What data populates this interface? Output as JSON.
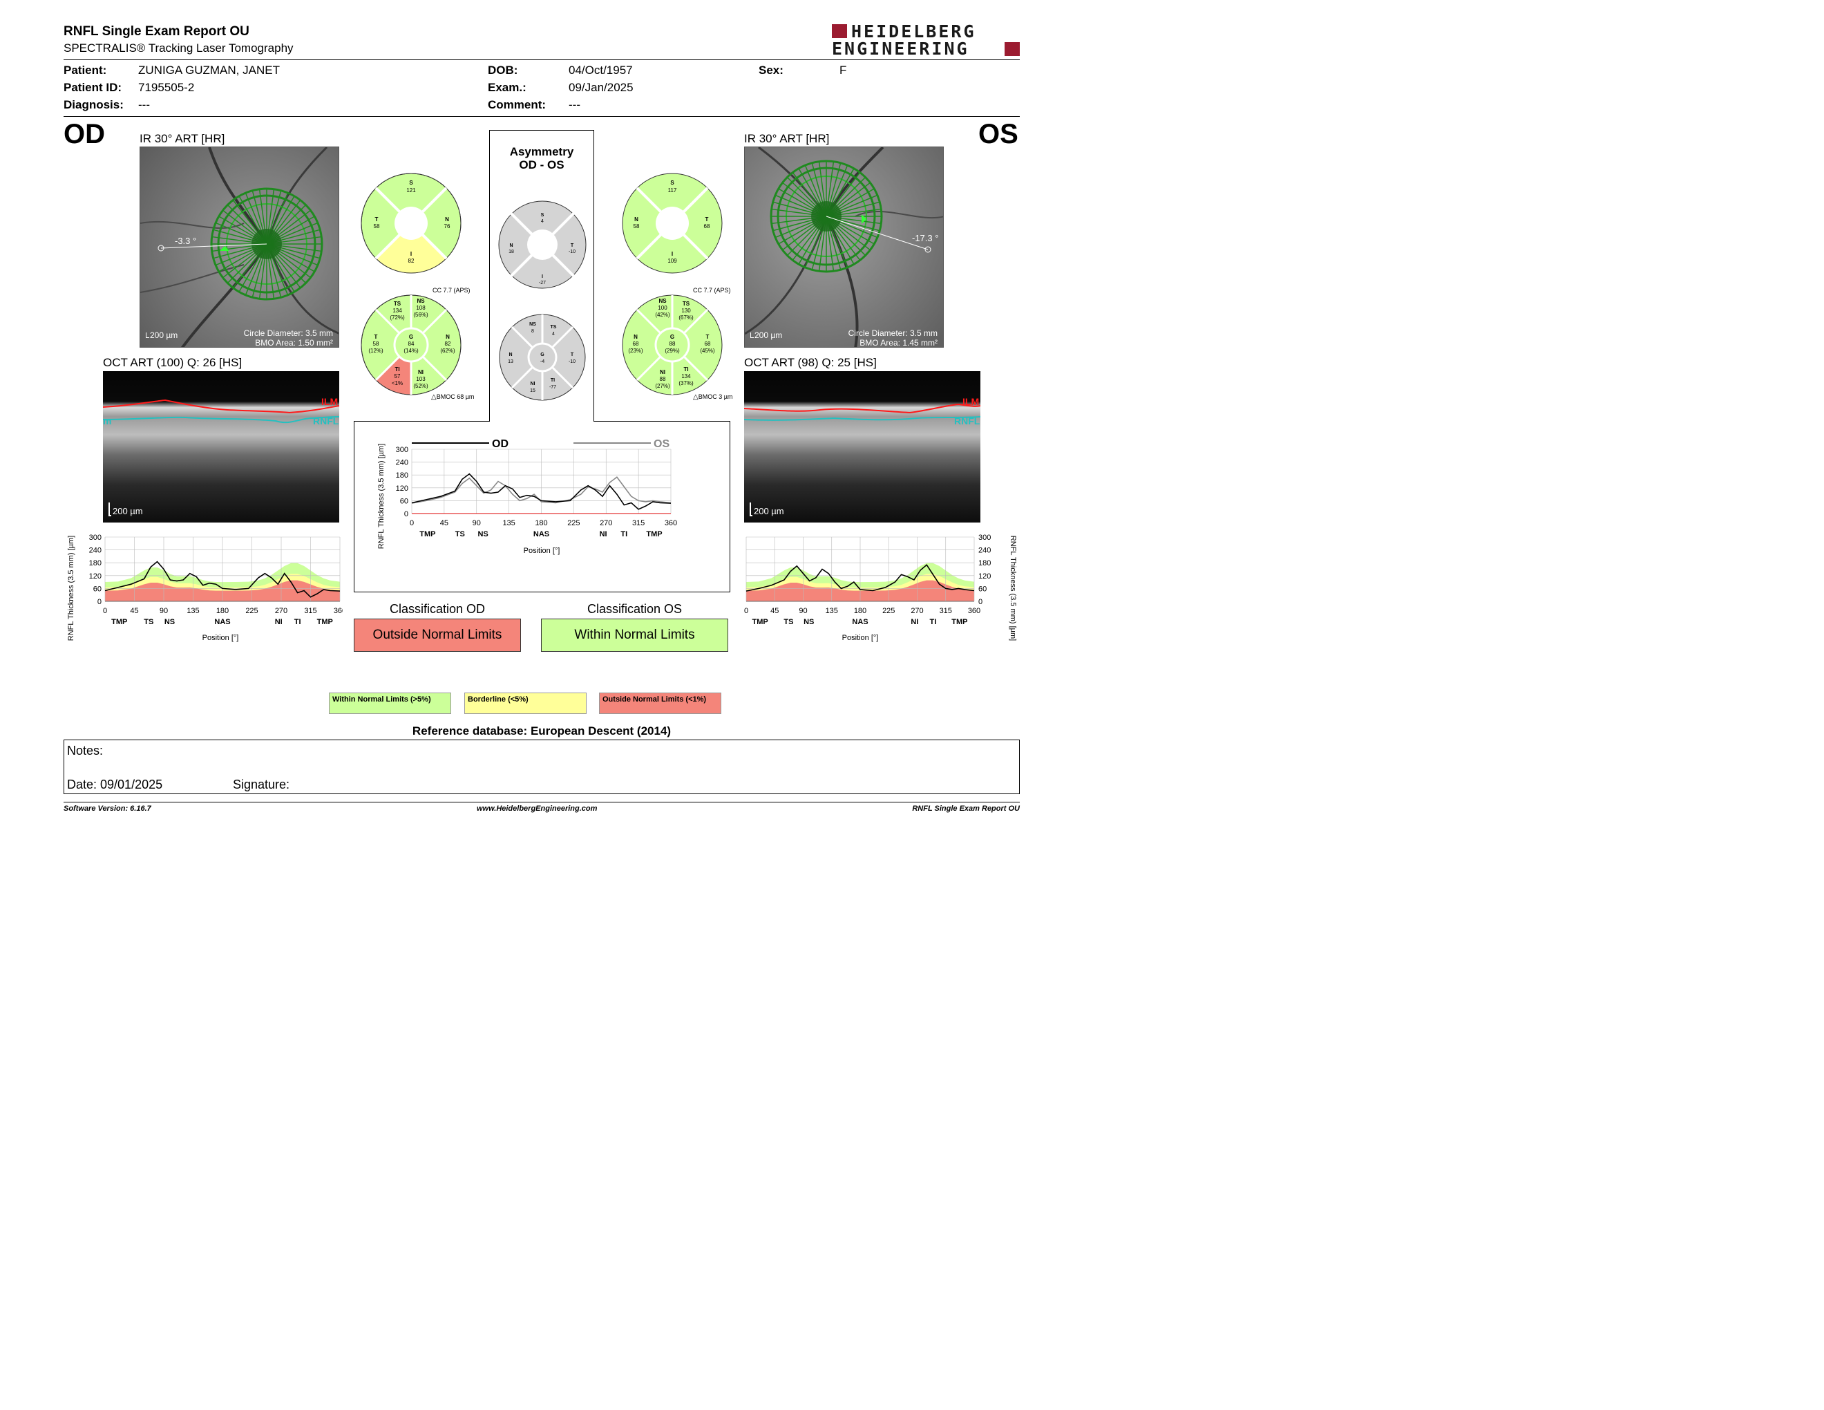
{
  "header": {
    "title": "RNFL Single Exam Report OU",
    "subtitle": "SPECTRALIS® Tracking Laser Tomography",
    "logo_line1": "HEIDELBERG",
    "logo_line2": "ENGINEERING"
  },
  "patient": {
    "patient_label": "Patient:",
    "patient_value": "ZUNIGA GUZMAN, JANET",
    "id_label": "Patient ID:",
    "id_value": "7195505-2",
    "diagnosis_label": "Diagnosis:",
    "diagnosis_value": "---",
    "dob_label": "DOB:",
    "dob_value": "04/Oct/1957",
    "exam_label": "Exam.:",
    "exam_value": "09/Jan/2025",
    "comment_label": "Comment:",
    "comment_value": "---",
    "sex_label": "Sex:",
    "sex_value": "F"
  },
  "od": {
    "eye": "OD",
    "ir_title": "IR 30° ART [HR]",
    "angle": "-3.3 °",
    "scale": "200 µm",
    "circle_diameter": "Circle Diameter: 3.5 mm",
    "bmo_area": "BMO Area: 1.50 mm²",
    "oct_title": "OCT ART (100) Q: 26 [HS]",
    "oct_scale": "200 µm",
    "ilm": "ILM",
    "rnfl": "RNFL",
    "rnfl_cut": "m",
    "sectors4": {
      "S": "121",
      "T": "58",
      "N": "76",
      "I": "82"
    },
    "cc": "CC 7.7 (APS)",
    "sectors6": {
      "TS": [
        "134",
        "(72%)"
      ],
      "NS": [
        "108",
        "(56%)"
      ],
      "T": [
        "58",
        "(12%)"
      ],
      "G": [
        "84",
        "(14%)"
      ],
      "N": [
        "82",
        "(62%)"
      ],
      "TI": [
        "57",
        "<1%"
      ],
      "NI": [
        "103",
        "(52%)"
      ]
    },
    "bmoc": "BMOC 68 µm",
    "classification_label": "Classification OD",
    "classification": "Outside Normal Limits"
  },
  "os": {
    "eye": "OS",
    "ir_title": "IR 30° ART [HR]",
    "angle": "-17.3 °",
    "scale": "200 µm",
    "circle_diameter": "Circle Diameter: 3.5 mm",
    "bmo_area": "BMO Area: 1.45 mm²",
    "oct_title": "OCT ART (98) Q: 25 [HS]",
    "oct_scale": "200 µm",
    "ilm": "ILM",
    "rnfl": "RNFL",
    "sectors4": {
      "S": "117",
      "T": "68",
      "N": "58",
      "I": "109"
    },
    "cc": "CC 7.7 (APS)",
    "sectors6": {
      "NS": [
        "100",
        "(42%)"
      ],
      "TS": [
        "130",
        "(67%)"
      ],
      "N": [
        "68",
        "(23%)"
      ],
      "G": [
        "88",
        "(29%)"
      ],
      "T": [
        "68",
        "(45%)"
      ],
      "NI": [
        "88",
        "(27%)"
      ],
      "TI": [
        "134",
        "(37%)"
      ]
    },
    "bmoc": "BMOC 3 µm",
    "classification_label": "Classification OS",
    "classification": "Within Normal Limits"
  },
  "asymmetry": {
    "title1": "Asymmetry",
    "title2": "OD - OS",
    "sectors4": {
      "S": "4",
      "N": "18",
      "T": "-10",
      "I": "-27"
    },
    "sectors6": {
      "NS": "8",
      "TS": "4",
      "N": "13",
      "G": "-4",
      "T": "-10",
      "NI": "15",
      "TI": "-77"
    }
  },
  "chart_labels": {
    "ylabel": "RNFL Thickness (3.5 mm) [µm]",
    "xlabel": "Position [°]",
    "yticks": [
      "0",
      "60",
      "120",
      "180",
      "240",
      "300"
    ],
    "xticks": [
      "0",
      "45",
      "90",
      "135",
      "180",
      "225",
      "270",
      "315",
      "360"
    ],
    "sectors": [
      "TMP",
      "TS",
      "NS",
      "NAS",
      "NI",
      "TI",
      "TMP"
    ],
    "legend_od": "OD",
    "legend_os": "OS"
  },
  "legend": {
    "green": "Within Normal Limits (>5%)",
    "yellow": "Borderline (<5%)",
    "red": "Outside Normal Limits (<1%)"
  },
  "reference": "Reference database: European Descent (2014)",
  "notes": {
    "notes_label": "Notes:",
    "date_label": "Date: 09/01/2025",
    "signature_label": "Signature:"
  },
  "footer": {
    "version": "Software Version: 6.16.7",
    "website": "www.HeidelbergEngineering.com",
    "report": "RNFL Single Exam Report OU"
  },
  "colors": {
    "green": "#ccff99",
    "yellow": "#ffff99",
    "red": "#f4857a",
    "grey": "#d4d4d4",
    "ilm": "#ff1a1a",
    "rnfl": "#25c0c0",
    "logo": "#9b1b30"
  },
  "chart_data": [
    {
      "type": "line",
      "title": "",
      "xlabel": "Position [°]",
      "ylabel": "RNFL Thickness (3.5 mm) [µm]",
      "xlim": [
        0,
        360
      ],
      "ylim": [
        0,
        300
      ],
      "x": [
        0,
        20,
        40,
        60,
        70,
        80,
        90,
        100,
        110,
        120,
        130,
        140,
        150,
        160,
        170,
        180,
        200,
        220,
        235,
        245,
        255,
        265,
        275,
        285,
        295,
        305,
        315,
        325,
        335,
        345,
        360
      ],
      "series": [
        {
          "name": "OD",
          "values": [
            50,
            65,
            80,
            105,
            160,
            185,
            150,
            100,
            95,
            100,
            130,
            115,
            75,
            85,
            80,
            60,
            55,
            60,
            110,
            130,
            110,
            80,
            130,
            90,
            40,
            50,
            20,
            35,
            55,
            50,
            48
          ]
        },
        {
          "name": "OS",
          "values": [
            48,
            60,
            75,
            100,
            140,
            165,
            130,
            95,
            110,
            150,
            130,
            90,
            60,
            70,
            90,
            55,
            50,
            65,
            90,
            125,
            115,
            100,
            145,
            170,
            125,
            80,
            60,
            55,
            60,
            55,
            50
          ]
        }
      ]
    },
    {
      "type": "line",
      "title": "",
      "xlabel": "Position [°]",
      "ylabel": "RNFL Thickness (3.5 mm) [µm]",
      "xlim": [
        0,
        360
      ],
      "ylim": [
        0,
        300
      ],
      "x": [
        0,
        20,
        40,
        60,
        70,
        80,
        90,
        100,
        110,
        120,
        130,
        140,
        150,
        160,
        170,
        180,
        200,
        220,
        235,
        245,
        255,
        265,
        275,
        285,
        295,
        305,
        315,
        325,
        335,
        345,
        360
      ],
      "series": [
        {
          "name": "OD",
          "values": [
            50,
            65,
            80,
            105,
            160,
            185,
            150,
            100,
            95,
            100,
            130,
            115,
            75,
            85,
            80,
            60,
            55,
            60,
            110,
            130,
            110,
            80,
            130,
            90,
            40,
            50,
            20,
            35,
            55,
            50,
            48
          ]
        }
      ]
    },
    {
      "type": "line",
      "title": "",
      "xlabel": "Position [°]",
      "ylabel": "RNFL Thickness (3.5 mm) [µm]",
      "xlim": [
        0,
        360
      ],
      "ylim": [
        0,
        300
      ],
      "x": [
        0,
        20,
        40,
        60,
        70,
        80,
        90,
        100,
        110,
        120,
        130,
        140,
        150,
        160,
        170,
        180,
        200,
        220,
        235,
        245,
        255,
        265,
        275,
        285,
        295,
        305,
        315,
        325,
        335,
        345,
        360
      ],
      "series": [
        {
          "name": "OS",
          "values": [
            48,
            60,
            75,
            100,
            140,
            165,
            130,
            95,
            110,
            150,
            130,
            90,
            60,
            70,
            90,
            55,
            50,
            65,
            90,
            125,
            115,
            100,
            145,
            170,
            125,
            80,
            60,
            55,
            60,
            55,
            50
          ]
        }
      ]
    }
  ]
}
